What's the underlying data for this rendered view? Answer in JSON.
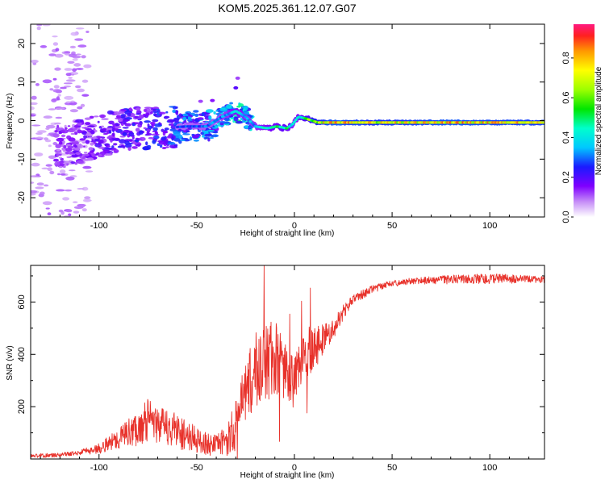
{
  "figure": {
    "title": "KOM5.2025.361.12.07.G07"
  },
  "chart_data": [
    {
      "type": "heatmap",
      "id": "spectrogram",
      "xlabel": "Height of straight line (km)",
      "ylabel": "Frequency (Hz)",
      "xlim": [
        -135,
        128
      ],
      "ylim": [
        -25,
        25
      ],
      "xticks": [
        -100,
        -50,
        0,
        50,
        100
      ],
      "yticks": [
        -20,
        -10,
        0,
        10,
        20
      ],
      "xtick_labels": [
        "-100",
        "-50",
        "0",
        "50",
        "100"
      ],
      "ytick_labels": [
        "-20",
        "-10",
        "0",
        "10",
        "20"
      ],
      "ridge": {
        "description_points_x": [
          -120,
          -100,
          -85,
          -70,
          -55,
          -45,
          -37,
          -30,
          -25,
          -20,
          -14,
          -9,
          -4,
          -1,
          2,
          6,
          12,
          20,
          40,
          60,
          80,
          100,
          128
        ],
        "frequency_hz": [
          -7,
          -4,
          -2,
          -2,
          -1.5,
          -1.5,
          1,
          2.5,
          1,
          -1.5,
          -2,
          -1.5,
          -2,
          -1,
          1,
          0.5,
          -0.5,
          -0.5,
          -0.5,
          -0.5,
          -0.5,
          -0.5,
          -0.5
        ],
        "normalized_amplitude": [
          0.15,
          0.18,
          0.22,
          0.25,
          0.3,
          0.32,
          0.35,
          0.45,
          0.4,
          0.38,
          0.45,
          0.5,
          0.55,
          0.4,
          0.45,
          0.6,
          0.75,
          0.85,
          0.78,
          0.8,
          0.85,
          0.82,
          0.8
        ]
      },
      "colorbar": {
        "label": "Normalized spectral amplitude",
        "range": [
          0,
          0.97
        ],
        "ticks": [
          0.0,
          0.2,
          0.4,
          0.6,
          0.8
        ],
        "tick_labels": [
          "0.0",
          "0.2",
          "0.4",
          "0.6",
          "0.8"
        ]
      }
    },
    {
      "type": "line",
      "id": "snr",
      "xlabel": "Height of straight line (km)",
      "ylabel": "SNR (v/v)",
      "xlim": [
        -135,
        128
      ],
      "ylim": [
        0,
        740
      ],
      "xticks": [
        -100,
        -50,
        0,
        50,
        100
      ],
      "yticks": [
        200,
        400,
        600
      ],
      "xtick_labels": [
        "-100",
        "-50",
        "0",
        "50",
        "100"
      ],
      "ytick_labels": [
        "200",
        "400",
        "600"
      ],
      "color": "#e8322b",
      "envelope": {
        "x": [
          -135,
          -120,
          -110,
          -100,
          -90,
          -80,
          -75,
          -70,
          -60,
          -50,
          -40,
          -35,
          -30,
          -25,
          -20,
          -15,
          -10,
          -5,
          0,
          5,
          10,
          15,
          20,
          25,
          30,
          40,
          50,
          60,
          80,
          100,
          128
        ],
        "mean": [
          12,
          15,
          25,
          40,
          80,
          120,
          150,
          130,
          110,
          70,
          50,
          70,
          130,
          250,
          340,
          370,
          380,
          350,
          280,
          400,
          440,
          460,
          500,
          560,
          610,
          650,
          670,
          680,
          685,
          690,
          685
        ],
        "amplitude": [
          8,
          8,
          10,
          20,
          40,
          70,
          80,
          70,
          70,
          50,
          40,
          60,
          100,
          120,
          150,
          180,
          150,
          120,
          100,
          110,
          100,
          60,
          40,
          30,
          20,
          15,
          12,
          12,
          18,
          20,
          12
        ]
      }
    }
  ]
}
